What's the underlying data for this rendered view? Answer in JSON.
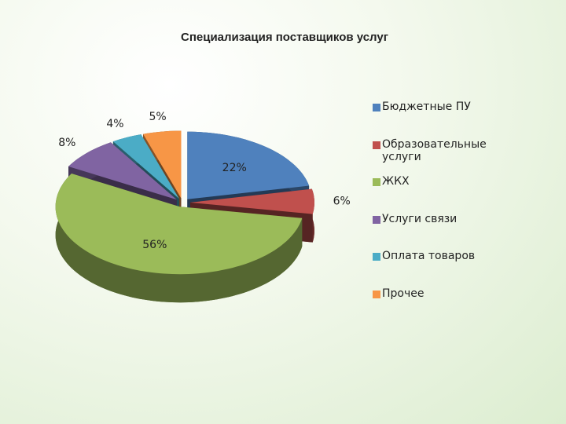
{
  "chart_data": {
    "type": "pie3d",
    "title": "Специализация поставщиков услуг",
    "categories": [
      "Бюджетные ПУ",
      "Образовательные услуги",
      "ЖКХ",
      "Услуги связи",
      "Оплата товаров",
      "Прочее"
    ],
    "values": [
      22,
      6,
      56,
      8,
      4,
      5
    ],
    "value_labels": [
      "22%",
      "6%",
      "56%",
      "8%",
      "4%",
      "5%"
    ],
    "colors": [
      "#4f81bd",
      "#c0504d",
      "#9bbb59",
      "#8064a2",
      "#4bacc6",
      "#f79646"
    ],
    "legend": "right"
  }
}
